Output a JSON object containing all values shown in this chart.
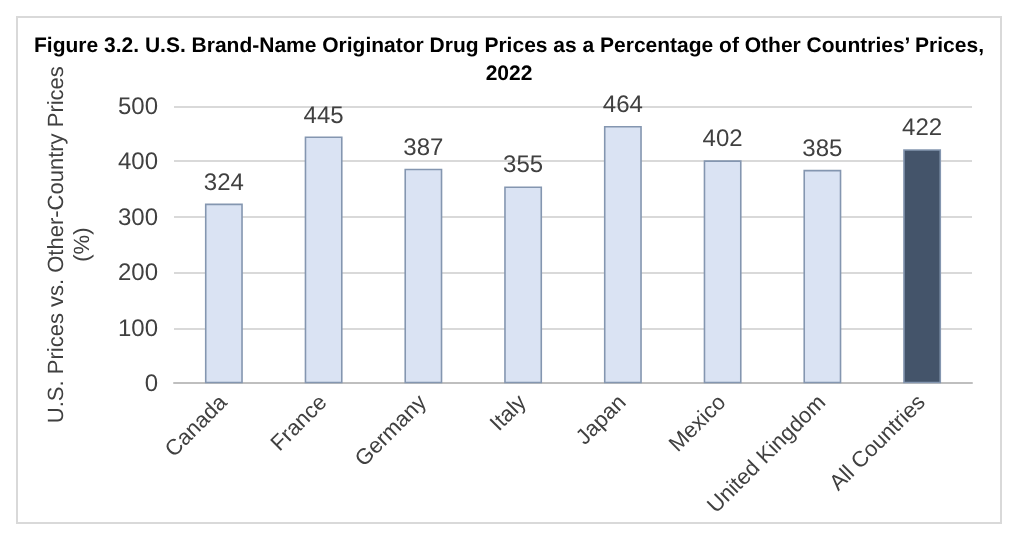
{
  "chart_data": {
    "type": "bar",
    "title": "Figure 3.2. U.S. Brand-Name Originator Drug Prices as a Percentage of Other Countries’ Prices,\n2022",
    "categories": [
      "Canada",
      "France",
      "Germany",
      "Italy",
      "Japan",
      "Mexico",
      "United Kingdom",
      "All Countries"
    ],
    "values": [
      324,
      445,
      387,
      355,
      464,
      402,
      385,
      422
    ],
    "colors": [
      "#dae3f3",
      "#dae3f3",
      "#dae3f3",
      "#dae3f3",
      "#dae3f3",
      "#dae3f3",
      "#dae3f3",
      "#44546a"
    ],
    "ylabel": "U.S. Prices vs. Other-Country Prices\n(%)",
    "ylim": [
      0,
      500
    ],
    "yticks": [
      0,
      100,
      200,
      300,
      400,
      500
    ],
    "grid": "y",
    "data_labels": true
  }
}
